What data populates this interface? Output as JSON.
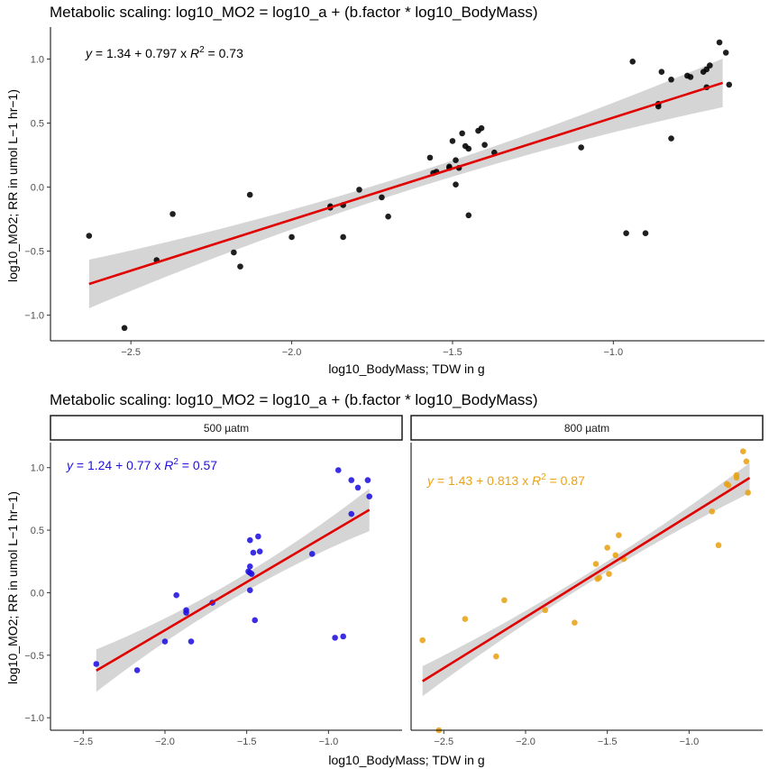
{
  "colors": {
    "all": "#000000",
    "p500": "#1f10e0",
    "p800": "#e8a317",
    "fit": "#e00000",
    "band": "#d3d3d3"
  },
  "chart_data": [
    {
      "type": "scatter",
      "title": "Metabolic scaling: log10_MO2 = log10_a + (b.factor * log10_BodyMass)",
      "xlabel": "log10_BodyMass; TDW in g",
      "ylabel": "log10_MO2; RR in umol L−1 hr−1)",
      "xlim": [
        -2.75,
        -0.53
      ],
      "ylim": [
        -1.2,
        1.25
      ],
      "xticks": [
        -2.5,
        -2.0,
        -1.5,
        -1.0
      ],
      "xtick_labels": [
        "−2.5",
        "−2.0",
        "−1.5",
        "−1.0"
      ],
      "yticks": [
        1.0,
        0.5,
        0.0,
        -0.5,
        -1.0
      ],
      "ytick_labels": [
        "1.0",
        "0.5",
        "0.0",
        "−0.5",
        "−1.0"
      ],
      "equation": {
        "y_label": "y",
        "lhs": " = 1.34 + 0.797 x   ",
        "r2_label": "R",
        "r2_sup": "2",
        "r2_rest": " = 0.73"
      },
      "fit": {
        "intercept": 1.34,
        "slope": 0.797,
        "x_range": [
          -2.63,
          -0.66
        ]
      },
      "band_halfwidth": {
        "ends": 0.19,
        "center": 0.06
      },
      "points": [
        [
          -2.63,
          -0.38
        ],
        [
          -2.52,
          -1.1
        ],
        [
          -2.42,
          -0.57
        ],
        [
          -2.37,
          -0.21
        ],
        [
          -2.18,
          -0.51
        ],
        [
          -2.16,
          -0.62
        ],
        [
          -2.13,
          -0.06
        ],
        [
          -2.0,
          -0.39
        ],
        [
          -1.88,
          -0.15
        ],
        [
          -1.88,
          -0.16
        ],
        [
          -1.84,
          -0.14
        ],
        [
          -1.84,
          -0.39
        ],
        [
          -1.79,
          -0.02
        ],
        [
          -1.72,
          -0.08
        ],
        [
          -1.7,
          -0.23
        ],
        [
          -1.57,
          0.23
        ],
        [
          -1.56,
          0.11
        ],
        [
          -1.55,
          0.12
        ],
        [
          -1.51,
          0.15
        ],
        [
          -1.51,
          0.16
        ],
        [
          -1.5,
          0.36
        ],
        [
          -1.49,
          0.21
        ],
        [
          -1.49,
          0.02
        ],
        [
          -1.48,
          0.15
        ],
        [
          -1.47,
          0.42
        ],
        [
          -1.46,
          0.32
        ],
        [
          -1.45,
          0.3
        ],
        [
          -1.45,
          -0.22
        ],
        [
          -1.42,
          0.44
        ],
        [
          -1.41,
          0.46
        ],
        [
          -1.4,
          0.33
        ],
        [
          -1.37,
          0.27
        ],
        [
          -1.1,
          0.31
        ],
        [
          -0.96,
          -0.36
        ],
        [
          -0.94,
          0.98
        ],
        [
          -0.9,
          -0.36
        ],
        [
          -0.86,
          0.63
        ],
        [
          -0.85,
          0.9
        ],
        [
          -0.82,
          0.38
        ],
        [
          -0.82,
          0.84
        ],
        [
          -0.77,
          0.87
        ],
        [
          -0.76,
          0.86
        ],
        [
          -0.72,
          0.9
        ],
        [
          -0.71,
          0.92
        ],
        [
          -0.71,
          0.78
        ],
        [
          -0.7,
          0.95
        ],
        [
          -0.67,
          1.13
        ],
        [
          -0.65,
          1.05
        ],
        [
          -0.64,
          0.8
        ],
        [
          -0.86,
          0.65
        ]
      ]
    },
    {
      "type": "scatter",
      "title": "Metabolic scaling: log10_MO2 = log10_a + (b.factor * log10_BodyMass)",
      "xlabel": "log10_BodyMass; TDW in g",
      "ylabel": "log10_MO2; RR in umol L−1 hr−1)",
      "xlim": [
        -2.7,
        -0.55
      ],
      "ylim": [
        -1.1,
        1.2
      ],
      "xticks": [
        -2.5,
        -2.0,
        -1.5,
        -1.0
      ],
      "xtick_labels": [
        "−2.5",
        "−2.0",
        "−1.5",
        "−1.0"
      ],
      "yticks": [
        1.0,
        0.5,
        0.0,
        -0.5,
        -1.0
      ],
      "ytick_labels": [
        "1.0",
        "0.5",
        "0.0",
        "−0.5",
        "−1.0"
      ],
      "panels": [
        {
          "strip": "500 µatm",
          "color": "#1f10e0",
          "equation": {
            "y_label": "y",
            "lhs": " = 1.24 + 0.77 x   ",
            "r2_label": "R",
            "r2_sup": "2",
            "r2_rest": " = 0.57"
          },
          "fit": {
            "intercept": 1.24,
            "slope": 0.77,
            "x_range": [
              -2.42,
              -0.75
            ]
          },
          "band_halfwidth": {
            "ends": 0.17,
            "center": 0.07
          },
          "points": [
            [
              -2.42,
              -0.57
            ],
            [
              -2.17,
              -0.62
            ],
            [
              -2.0,
              -0.39
            ],
            [
              -1.93,
              -0.02
            ],
            [
              -1.87,
              -0.14
            ],
            [
              -1.87,
              -0.16
            ],
            [
              -1.84,
              -0.39
            ],
            [
              -1.71,
              -0.08
            ],
            [
              -1.49,
              0.17
            ],
            [
              -1.48,
              0.21
            ],
            [
              -1.48,
              0.02
            ],
            [
              -1.48,
              0.42
            ],
            [
              -1.47,
              0.15
            ],
            [
              -1.46,
              0.32
            ],
            [
              -1.45,
              -0.22
            ],
            [
              -1.43,
              0.45
            ],
            [
              -1.42,
              0.33
            ],
            [
              -1.48,
              0.16
            ],
            [
              -1.1,
              0.31
            ],
            [
              -0.96,
              -0.36
            ],
            [
              -0.94,
              0.98
            ],
            [
              -0.91,
              -0.35
            ],
            [
              -0.86,
              0.63
            ],
            [
              -0.86,
              0.9
            ],
            [
              -0.82,
              0.84
            ],
            [
              -0.76,
              0.9
            ],
            [
              -0.75,
              0.77
            ]
          ]
        },
        {
          "strip": "800 µatm",
          "color": "#e8a317",
          "equation": {
            "y_label": "y",
            "lhs": " = 1.43 + 0.813 x   ",
            "r2_label": "R",
            "r2_sup": "2",
            "r2_rest": " = 0.87"
          },
          "fit": {
            "intercept": 1.43,
            "slope": 0.813,
            "x_range": [
              -2.63,
              -0.63
            ]
          },
          "band_halfwidth": {
            "ends": 0.12,
            "center": 0.04
          },
          "points": [
            [
              -2.63,
              -0.38
            ],
            [
              -2.53,
              -1.1
            ],
            [
              -2.37,
              -0.21
            ],
            [
              -2.18,
              -0.51
            ],
            [
              -2.13,
              -0.06
            ],
            [
              -1.88,
              -0.14
            ],
            [
              -1.7,
              -0.24
            ],
            [
              -1.57,
              0.23
            ],
            [
              -1.56,
              0.11
            ],
            [
              -1.55,
              0.12
            ],
            [
              -1.5,
              0.36
            ],
            [
              -1.49,
              0.15
            ],
            [
              -1.45,
              0.3
            ],
            [
              -1.43,
              0.46
            ],
            [
              -1.4,
              0.27
            ],
            [
              -0.86,
              0.65
            ],
            [
              -0.82,
              0.38
            ],
            [
              -0.77,
              0.87
            ],
            [
              -0.76,
              0.86
            ],
            [
              -0.71,
              0.92
            ],
            [
              -0.71,
              0.94
            ],
            [
              -0.67,
              1.13
            ],
            [
              -0.65,
              1.05
            ],
            [
              -0.64,
              0.8
            ]
          ]
        }
      ]
    }
  ]
}
